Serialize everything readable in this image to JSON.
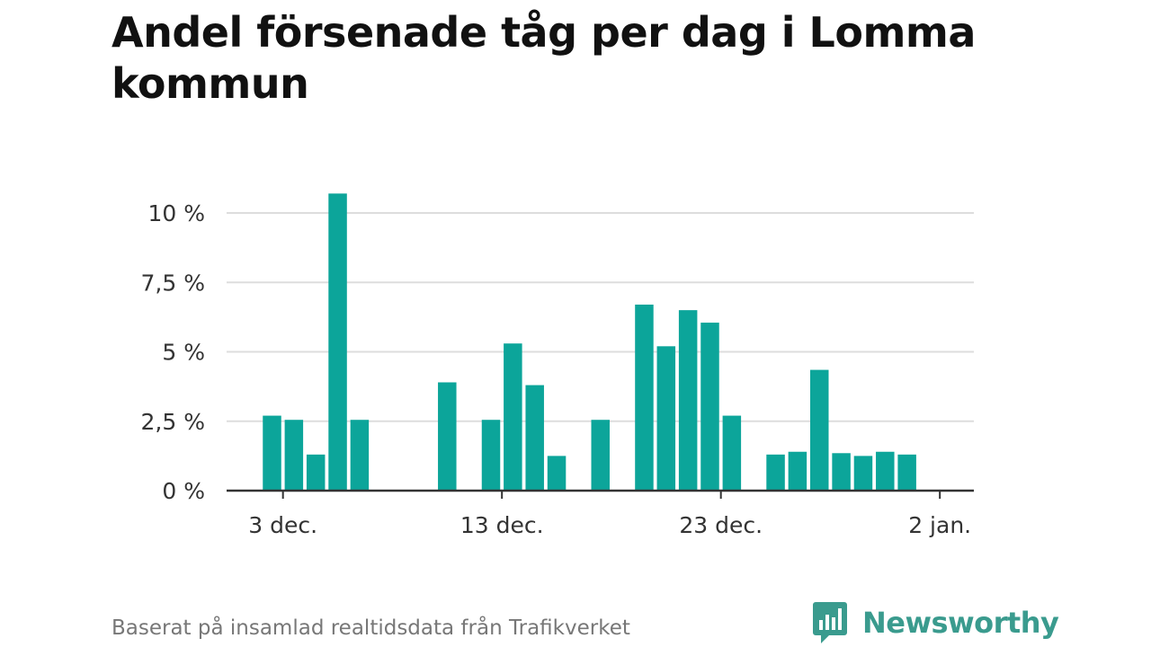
{
  "title": "Andel försenade tåg per dag i Lomma kommun",
  "footer": {
    "source": "Baserat på insamlad realtidsdata från Trafikverket",
    "brand": "Newsworthy"
  },
  "colors": {
    "bar": "#0ca59a",
    "grid": "#dddddd",
    "axis": "#333333",
    "brand": "#3a9b8e"
  },
  "chart_data": {
    "type": "bar",
    "title": "Andel försenade tåg per dag i Lomma kommun",
    "xlabel": "",
    "ylabel": "",
    "ylim": [
      0,
      10
    ],
    "grid": true,
    "legend": "none",
    "x_dates": [
      "2 dec.",
      "3 dec.",
      "4 dec.",
      "5 dec.",
      "6 dec.",
      "7 dec.",
      "8 dec.",
      "9 dec.",
      "10 dec.",
      "11 dec.",
      "12 dec.",
      "13 dec.",
      "14 dec.",
      "15 dec.",
      "16 dec.",
      "17 dec.",
      "18 dec.",
      "19 dec.",
      "20 dec.",
      "21 dec.",
      "22 dec.",
      "23 dec.",
      "24 dec.",
      "25 dec.",
      "26 dec.",
      "27 dec.",
      "28 dec.",
      "29 dec.",
      "30 dec.",
      "31 dec."
    ],
    "values": [
      2.7,
      2.55,
      1.3,
      10.7,
      2.55,
      null,
      null,
      null,
      3.9,
      null,
      2.55,
      5.3,
      3.8,
      1.25,
      null,
      2.55,
      null,
      6.7,
      5.2,
      6.5,
      6.05,
      2.7,
      null,
      1.3,
      1.4,
      4.35,
      1.35,
      1.25,
      1.4,
      1.3
    ],
    "y_ticks": [
      {
        "value": 0,
        "label": "0 %"
      },
      {
        "value": 2.5,
        "label": "2,5 %"
      },
      {
        "value": 5,
        "label": "5 %"
      },
      {
        "value": 7.5,
        "label": "7,5 %"
      },
      {
        "value": 10,
        "label": "10 %"
      }
    ],
    "x_ticks": [
      {
        "date": "3 dec.",
        "label": "3 dec."
      },
      {
        "date": "13 dec.",
        "label": "13 dec."
      },
      {
        "date": "23 dec.",
        "label": "23 dec."
      },
      {
        "date": "2 jan.",
        "label": "2 jan."
      }
    ]
  }
}
